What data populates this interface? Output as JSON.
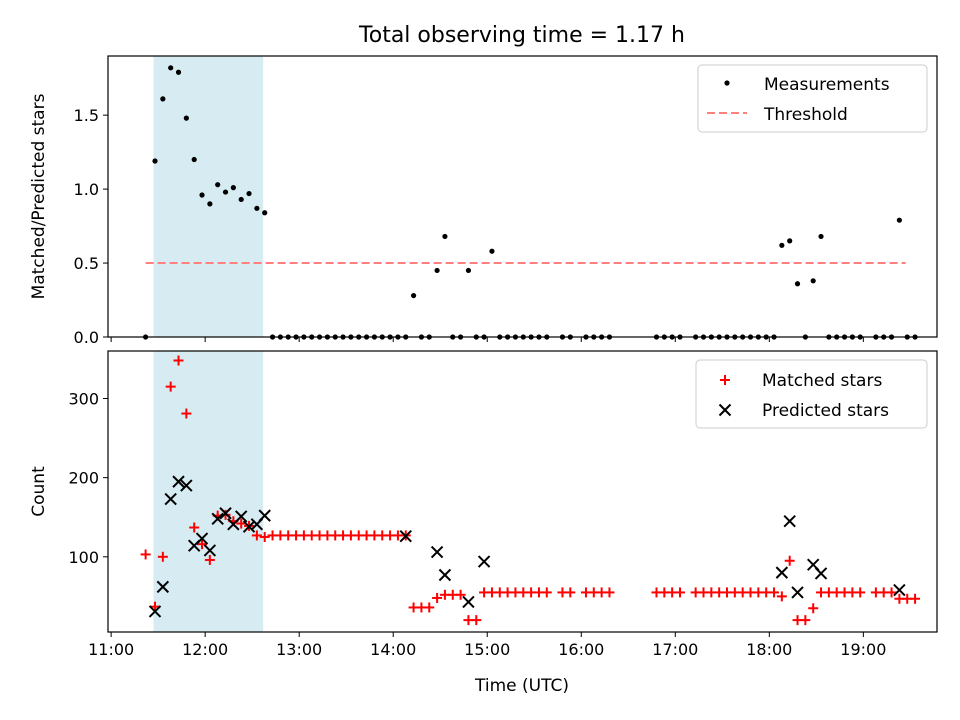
{
  "figure": {
    "title": "Total observing time = 1.17 h",
    "xlabel": "Time (UTC)",
    "xticks": [
      "11:00",
      "12:00",
      "13:00",
      "14:00",
      "15:00",
      "16:00",
      "17:00",
      "18:00",
      "19:00"
    ]
  },
  "chart_data": [
    {
      "type": "scatter",
      "panel": "top",
      "ylabel": "Matched/Predicted stars",
      "ylim": [
        0,
        1.9
      ],
      "yticks": [
        "0.0",
        "0.5",
        "1.0",
        "1.5"
      ],
      "xlim": [
        "10:58",
        "19:47"
      ],
      "shaded_span": {
        "start": "11:27",
        "end": "12:37",
        "color": "#add8e6"
      },
      "legend": {
        "placement": "top-right",
        "entries": [
          "Measurements",
          "Threshold"
        ]
      },
      "threshold": {
        "name": "Threshold",
        "value": 0.5,
        "x_start": "11:22",
        "x_end": "19:27",
        "color": "#ff7f7f"
      },
      "series": [
        {
          "name": "Measurements",
          "color": "#000000",
          "points": [
            [
              "11:22",
              0
            ],
            [
              "11:28",
              1.19
            ],
            [
              "11:33",
              1.61
            ],
            [
              "11:38",
              1.82
            ],
            [
              "11:43",
              1.79
            ],
            [
              "11:48",
              1.48
            ],
            [
              "11:53",
              1.2
            ],
            [
              "11:58",
              0.96
            ],
            [
              "12:03",
              0.9
            ],
            [
              "12:08",
              1.03
            ],
            [
              "12:13",
              0.98
            ],
            [
              "12:18",
              1.01
            ],
            [
              "12:23",
              0.93
            ],
            [
              "12:28",
              0.97
            ],
            [
              "12:33",
              0.87
            ],
            [
              "12:38",
              0.84
            ],
            [
              "12:43",
              0
            ],
            [
              "12:48",
              0
            ],
            [
              "12:53",
              0
            ],
            [
              "12:58",
              0
            ],
            [
              "13:03",
              0
            ],
            [
              "13:08",
              0
            ],
            [
              "13:13",
              0
            ],
            [
              "13:18",
              0
            ],
            [
              "13:23",
              0
            ],
            [
              "13:28",
              0
            ],
            [
              "13:33",
              0
            ],
            [
              "13:38",
              0
            ],
            [
              "13:43",
              0
            ],
            [
              "13:48",
              0
            ],
            [
              "13:53",
              0
            ],
            [
              "13:58",
              0
            ],
            [
              "14:03",
              0
            ],
            [
              "14:08",
              0
            ],
            [
              "14:13",
              0.28
            ],
            [
              "14:18",
              0
            ],
            [
              "14:23",
              0
            ],
            [
              "14:28",
              0.45
            ],
            [
              "14:33",
              0.68
            ],
            [
              "14:38",
              0
            ],
            [
              "14:43",
              0
            ],
            [
              "14:48",
              0.45
            ],
            [
              "14:53",
              0
            ],
            [
              "14:58",
              0
            ],
            [
              "15:03",
              0.58
            ],
            [
              "15:08",
              0
            ],
            [
              "15:13",
              0
            ],
            [
              "15:18",
              0
            ],
            [
              "15:23",
              0
            ],
            [
              "15:28",
              0
            ],
            [
              "15:33",
              0
            ],
            [
              "15:38",
              0
            ],
            [
              "15:48",
              0
            ],
            [
              "15:53",
              0
            ],
            [
              "16:03",
              0
            ],
            [
              "16:08",
              0
            ],
            [
              "16:13",
              0
            ],
            [
              "16:18",
              0
            ],
            [
              "16:48",
              0
            ],
            [
              "16:53",
              0
            ],
            [
              "16:58",
              0
            ],
            [
              "17:03",
              0
            ],
            [
              "17:13",
              0
            ],
            [
              "17:18",
              0
            ],
            [
              "17:23",
              0
            ],
            [
              "17:28",
              0
            ],
            [
              "17:33",
              0
            ],
            [
              "17:38",
              0
            ],
            [
              "17:43",
              0
            ],
            [
              "17:48",
              0
            ],
            [
              "17:53",
              0
            ],
            [
              "17:58",
              0
            ],
            [
              "18:03",
              0
            ],
            [
              "18:08",
              0.62
            ],
            [
              "18:13",
              0.65
            ],
            [
              "18:18",
              0.36
            ],
            [
              "18:23",
              0
            ],
            [
              "18:28",
              0.38
            ],
            [
              "18:33",
              0.68
            ],
            [
              "18:38",
              0
            ],
            [
              "18:43",
              0
            ],
            [
              "18:48",
              0
            ],
            [
              "18:53",
              0
            ],
            [
              "18:58",
              0
            ],
            [
              "19:08",
              0
            ],
            [
              "19:13",
              0
            ],
            [
              "19:18",
              0
            ],
            [
              "19:23",
              0.79
            ],
            [
              "19:28",
              0
            ],
            [
              "19:33",
              0
            ]
          ]
        }
      ]
    },
    {
      "type": "scatter",
      "panel": "bottom",
      "ylabel": "Count",
      "ylim": [
        5,
        360
      ],
      "yticks": [
        "100",
        "200",
        "300"
      ],
      "xlim": [
        "10:58",
        "19:47"
      ],
      "shaded_span": {
        "start": "11:27",
        "end": "12:37",
        "color": "#add8e6"
      },
      "legend": {
        "placement": "top-right",
        "entries": [
          "Matched stars",
          "Predicted stars"
        ]
      },
      "series": [
        {
          "name": "Matched stars",
          "color": "#ff0000",
          "marker": "plus",
          "points": [
            [
              "11:22",
              103
            ],
            [
              "11:28",
              37
            ],
            [
              "11:33",
              100
            ],
            [
              "11:38",
              315
            ],
            [
              "11:43",
              348
            ],
            [
              "11:48",
              281
            ],
            [
              "11:53",
              137
            ],
            [
              "11:58",
              116
            ],
            [
              "12:03",
              96
            ],
            [
              "12:08",
              152
            ],
            [
              "12:13",
              153
            ],
            [
              "12:18",
              145
            ],
            [
              "12:23",
              142
            ],
            [
              "12:28",
              139
            ],
            [
              "12:33",
              127
            ],
            [
              "12:38",
              125
            ],
            [
              "12:43",
              127
            ],
            [
              "12:48",
              127
            ],
            [
              "12:53",
              127
            ],
            [
              "12:58",
              127
            ],
            [
              "13:03",
              127
            ],
            [
              "13:08",
              127
            ],
            [
              "13:13",
              127
            ],
            [
              "13:18",
              127
            ],
            [
              "13:23",
              127
            ],
            [
              "13:28",
              127
            ],
            [
              "13:33",
              127
            ],
            [
              "13:38",
              127
            ],
            [
              "13:43",
              127
            ],
            [
              "13:48",
              127
            ],
            [
              "13:53",
              127
            ],
            [
              "13:58",
              127
            ],
            [
              "14:03",
              127
            ],
            [
              "14:08",
              127
            ],
            [
              "14:13",
              36
            ],
            [
              "14:18",
              36
            ],
            [
              "14:23",
              36
            ],
            [
              "14:28",
              48
            ],
            [
              "14:33",
              52
            ],
            [
              "14:38",
              52
            ],
            [
              "14:43",
              52
            ],
            [
              "14:48",
              20
            ],
            [
              "14:53",
              20
            ],
            [
              "14:58",
              55
            ],
            [
              "15:03",
              55
            ],
            [
              "15:08",
              55
            ],
            [
              "15:13",
              55
            ],
            [
              "15:18",
              55
            ],
            [
              "15:23",
              55
            ],
            [
              "15:28",
              55
            ],
            [
              "15:33",
              55
            ],
            [
              "15:38",
              55
            ],
            [
              "15:48",
              55
            ],
            [
              "15:53",
              55
            ],
            [
              "16:03",
              55
            ],
            [
              "16:08",
              55
            ],
            [
              "16:13",
              55
            ],
            [
              "16:18",
              55
            ],
            [
              "16:48",
              55
            ],
            [
              "16:53",
              55
            ],
            [
              "16:58",
              55
            ],
            [
              "17:03",
              55
            ],
            [
              "17:13",
              55
            ],
            [
              "17:18",
              55
            ],
            [
              "17:23",
              55
            ],
            [
              "17:28",
              55
            ],
            [
              "17:33",
              55
            ],
            [
              "17:38",
              55
            ],
            [
              "17:43",
              55
            ],
            [
              "17:48",
              55
            ],
            [
              "17:53",
              55
            ],
            [
              "17:58",
              55
            ],
            [
              "18:03",
              55
            ],
            [
              "18:08",
              50
            ],
            [
              "18:13",
              95
            ],
            [
              "18:18",
              20
            ],
            [
              "18:23",
              20
            ],
            [
              "18:28",
              35
            ],
            [
              "18:33",
              55
            ],
            [
              "18:38",
              55
            ],
            [
              "18:43",
              55
            ],
            [
              "18:48",
              55
            ],
            [
              "18:53",
              55
            ],
            [
              "18:58",
              55
            ],
            [
              "19:08",
              55
            ],
            [
              "19:13",
              55
            ],
            [
              "19:18",
              55
            ],
            [
              "19:23",
              47
            ],
            [
              "19:28",
              47
            ],
            [
              "19:33",
              47
            ]
          ]
        },
        {
          "name": "Predicted stars",
          "color": "#000000",
          "marker": "x",
          "points": [
            [
              "11:28",
              31
            ],
            [
              "11:33",
              62
            ],
            [
              "11:38",
              173
            ],
            [
              "11:43",
              195
            ],
            [
              "11:48",
              190
            ],
            [
              "11:53",
              114
            ],
            [
              "11:58",
              123
            ],
            [
              "12:03",
              108
            ],
            [
              "12:08",
              148
            ],
            [
              "12:13",
              155
            ],
            [
              "12:18",
              141
            ],
            [
              "12:23",
              151
            ],
            [
              "12:28",
              138
            ],
            [
              "12:33",
              141
            ],
            [
              "12:38",
              152
            ],
            [
              "14:08",
              126
            ],
            [
              "14:28",
              106
            ],
            [
              "14:33",
              77
            ],
            [
              "14:48",
              43
            ],
            [
              "14:58",
              94
            ],
            [
              "18:08",
              80
            ],
            [
              "18:13",
              145
            ],
            [
              "18:18",
              55
            ],
            [
              "18:28",
              90
            ],
            [
              "18:33",
              79
            ],
            [
              "19:23",
              58
            ]
          ]
        }
      ]
    }
  ]
}
